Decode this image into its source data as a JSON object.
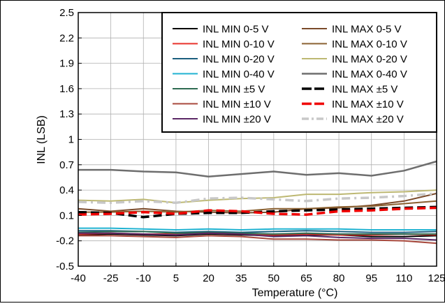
{
  "chart_data": {
    "type": "line",
    "xlabel": "Temperature (°C)",
    "ylabel": "INL (LSB)",
    "x": [
      -40,
      -25,
      -10,
      5,
      20,
      35,
      50,
      65,
      80,
      95,
      110,
      125
    ],
    "x_tick_labels": [
      "-40",
      "-25",
      "-10",
      "5",
      "20",
      "35",
      "50",
      "65",
      "80",
      "95",
      "110",
      "125"
    ],
    "y_ticks": [
      -0.5,
      -0.2,
      0.1,
      0.4,
      0.7,
      1,
      1.3,
      1.6,
      1.9,
      2.2,
      2.5
    ],
    "y_tick_labels": [
      "-0.5",
      "-0.2",
      "0.1",
      "0.4",
      "0.7",
      "1",
      "1.3",
      "1.6",
      "1.9",
      "2.2",
      "2.5"
    ],
    "xlim": [
      -40,
      125
    ],
    "ylim": [
      -0.5,
      2.5
    ],
    "grid": true,
    "legend_position": "top-right",
    "series": [
      {
        "name": "INL MIN 0-5 V",
        "color": "#000000",
        "dash": "solid",
        "width": 2,
        "values": [
          -0.13,
          -0.12,
          -0.13,
          -0.14,
          -0.12,
          -0.13,
          -0.14,
          -0.13,
          -0.13,
          -0.15,
          -0.15,
          -0.14
        ]
      },
      {
        "name": "INL MIN 0-10 V",
        "color": "#e8312a",
        "dash": "solid",
        "width": 2,
        "values": [
          -0.12,
          -0.11,
          -0.12,
          -0.12,
          -0.11,
          -0.12,
          -0.13,
          -0.12,
          -0.13,
          -0.13,
          -0.12,
          -0.13
        ]
      },
      {
        "name": "INL MIN 0-20 V",
        "color": "#1c5f7e",
        "dash": "solid",
        "width": 2,
        "values": [
          -0.08,
          -0.08,
          -0.09,
          -0.1,
          -0.09,
          -0.1,
          -0.09,
          -0.08,
          -0.09,
          -0.1,
          -0.1,
          -0.09
        ]
      },
      {
        "name": "INL MIN 0-40 V",
        "color": "#1fb2d1",
        "dash": "solid",
        "width": 2,
        "values": [
          -0.05,
          -0.05,
          -0.06,
          -0.07,
          -0.06,
          -0.07,
          -0.06,
          -0.06,
          -0.06,
          -0.07,
          -0.07,
          -0.07
        ]
      },
      {
        "name": "INL MIN ±5 V",
        "color": "#2e6b52",
        "dash": "solid",
        "width": 2,
        "values": [
          -0.1,
          -0.09,
          -0.09,
          -0.11,
          -0.1,
          -0.11,
          -0.12,
          -0.11,
          -0.12,
          -0.12,
          -0.12,
          -0.12
        ]
      },
      {
        "name": "INL MIN ±10 V",
        "color": "#a8483c",
        "dash": "solid",
        "width": 2,
        "values": [
          -0.14,
          -0.14,
          -0.15,
          -0.16,
          -0.14,
          -0.15,
          -0.18,
          -0.18,
          -0.19,
          -0.19,
          -0.2,
          -0.23
        ]
      },
      {
        "name": "INL MIN ±20 V",
        "color": "#5b2866",
        "dash": "solid",
        "width": 2,
        "values": [
          -0.11,
          -0.11,
          -0.12,
          -0.13,
          -0.11,
          -0.12,
          -0.15,
          -0.14,
          -0.16,
          -0.17,
          -0.17,
          -0.19
        ]
      },
      {
        "name": "INL MAX 0-5 V",
        "color": "#7a4a2a",
        "dash": "solid",
        "width": 2,
        "values": [
          0.18,
          0.15,
          0.18,
          0.15,
          0.14,
          0.13,
          0.14,
          0.18,
          0.19,
          0.22,
          0.27,
          0.36
        ]
      },
      {
        "name": "INL MAX 0-10 V",
        "color": "#8a6030",
        "dash": "solid",
        "width": 2,
        "values": [
          0.14,
          0.14,
          0.15,
          0.14,
          0.16,
          0.15,
          0.18,
          0.18,
          0.2,
          0.21,
          0.24,
          0.27
        ]
      },
      {
        "name": "INL MAX 0-20 V",
        "color": "#bdb872",
        "dash": "solid",
        "width": 2,
        "values": [
          0.28,
          0.27,
          0.29,
          0.25,
          0.28,
          0.3,
          0.31,
          0.35,
          0.35,
          0.37,
          0.38,
          0.4
        ]
      },
      {
        "name": "INL MAX 0-40 V",
        "color": "#6e6e6e",
        "dash": "solid",
        "width": 2.5,
        "values": [
          0.64,
          0.64,
          0.62,
          0.61,
          0.56,
          0.59,
          0.62,
          0.58,
          0.6,
          0.57,
          0.63,
          0.74
        ]
      },
      {
        "name": "INL MAX ±5 V",
        "color": "#000000",
        "dash": "12,6",
        "width": 3.5,
        "values": [
          0.14,
          0.13,
          0.08,
          0.12,
          0.13,
          0.13,
          0.15,
          0.16,
          0.17,
          0.18,
          0.19,
          0.2
        ]
      },
      {
        "name": "INL MAX ±10 V",
        "color": "#f00000",
        "dash": "12,6",
        "width": 3.5,
        "values": [
          0.11,
          0.12,
          0.14,
          0.12,
          0.16,
          0.15,
          0.12,
          0.11,
          0.15,
          0.16,
          0.18,
          0.19
        ]
      },
      {
        "name": "INL MAX ±20 V",
        "color": "#c8c8c8",
        "dash": "12,6,3,6",
        "width": 3.5,
        "values": [
          0.26,
          0.25,
          0.27,
          0.25,
          0.3,
          0.31,
          0.29,
          0.27,
          0.3,
          0.31,
          0.33,
          0.36
        ]
      }
    ]
  }
}
